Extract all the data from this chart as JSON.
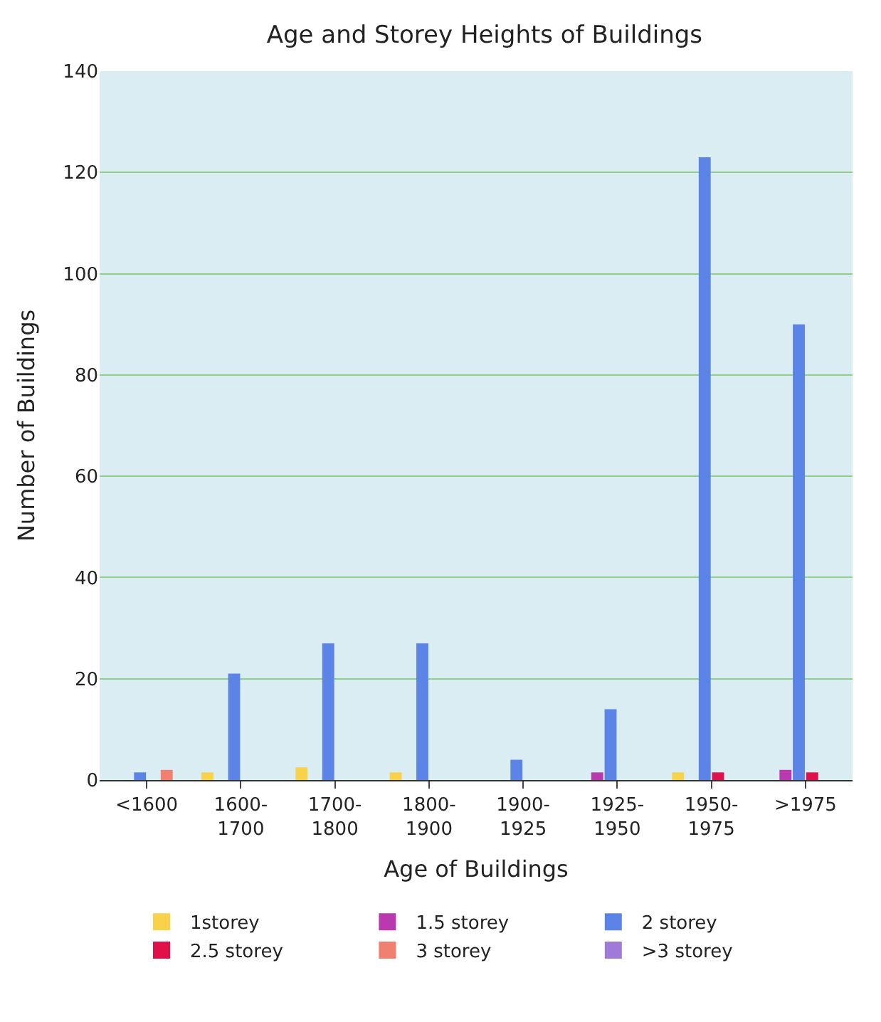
{
  "chart_data": {
    "type": "bar",
    "title": "Age and Storey Heights of Buildings",
    "xlabel": "Age of Buildings",
    "ylabel": "Number of Buildings",
    "categories": [
      "<1600",
      "1600-\n1700",
      "1700-\n1800",
      "1800-\n1900",
      "1900-\n1925",
      "1925-\n1950",
      "1950-\n1975",
      ">1975"
    ],
    "series": [
      {
        "name": "1storey",
        "color": "#f7d24a",
        "values": [
          null,
          1.5,
          2.5,
          1.5,
          null,
          null,
          1.5,
          null
        ]
      },
      {
        "name": "1.5 storey",
        "color": "#b83aae",
        "values": [
          null,
          null,
          null,
          null,
          null,
          1.5,
          null,
          2
        ]
      },
      {
        "name": "2 storey",
        "color": "#5b84e6",
        "values": [
          1.5,
          21,
          27,
          27,
          4,
          14,
          123,
          90
        ]
      },
      {
        "name": "2.5 storey",
        "color": "#e0104a",
        "values": [
          null,
          null,
          null,
          null,
          null,
          null,
          1.5,
          1.5
        ]
      },
      {
        "name": "3 storey",
        "color": "#f08070",
        "values": [
          2,
          null,
          null,
          null,
          null,
          null,
          null,
          null
        ]
      },
      {
        "name": ">3 storey",
        "color": "#a07ad8",
        "values": [
          null,
          null,
          null,
          null,
          null,
          null,
          null,
          null
        ]
      }
    ],
    "ylim": [
      0,
      140
    ],
    "yticks": [
      0,
      20,
      40,
      60,
      80,
      100,
      120,
      140
    ],
    "grid": "y",
    "legend": "bottom"
  }
}
